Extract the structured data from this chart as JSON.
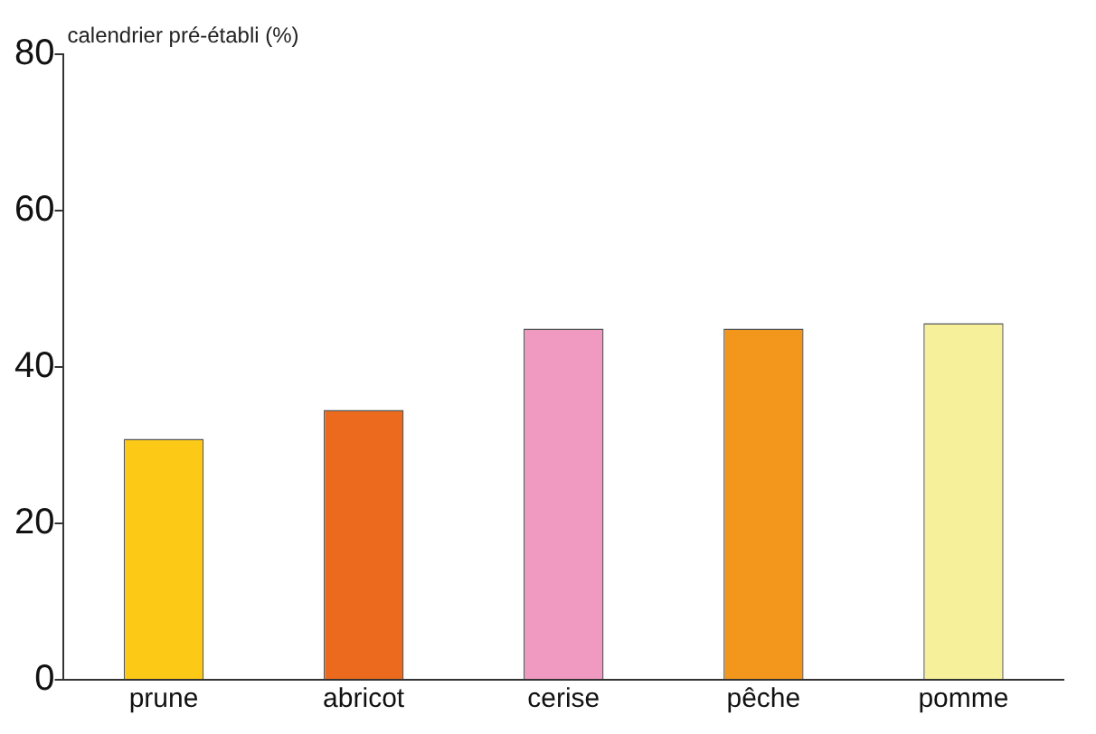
{
  "chart_data": {
    "type": "bar",
    "ylabel": "calendrier pré-établi (%)",
    "categories": [
      "prune",
      "abricot",
      "cerise",
      "pêche",
      "pomme"
    ],
    "values": [
      30.8,
      34.5,
      44.9,
      44.9,
      45.6
    ],
    "colors": [
      "#fcc917",
      "#eb6a1e",
      "#f09ac2",
      "#f3971c",
      "#f6f09a"
    ],
    "ylim": [
      0,
      80
    ],
    "yticks": [
      0,
      20,
      40,
      60,
      80
    ],
    "grid": false,
    "legend": false
  }
}
